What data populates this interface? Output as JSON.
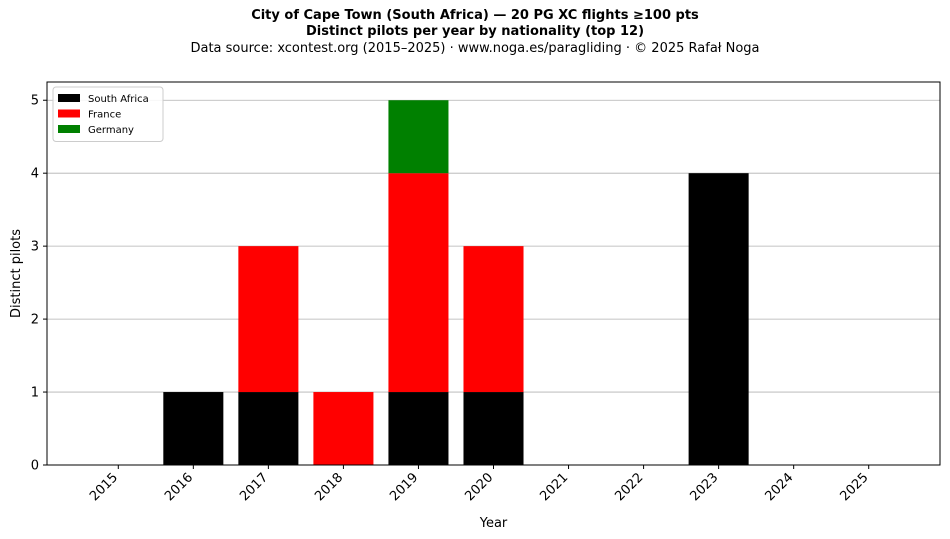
{
  "header": {
    "title_line1": "City of Cape Town (South Africa)  —  20 PG XC flights ≥100 pts",
    "title_line2": "Distinct pilots per year by nationality (top 12)",
    "subtitle": "Data source: xcontest.org (2015–2025)  ·  www.noga.es/paragliding  ·  © 2025 Rafał Noga"
  },
  "chart_data": {
    "type": "bar",
    "stacked": true,
    "categories": [
      "2015",
      "2016",
      "2017",
      "2018",
      "2019",
      "2020",
      "2021",
      "2022",
      "2023",
      "2024",
      "2025"
    ],
    "series": [
      {
        "name": "South Africa",
        "color": "#000000",
        "values": [
          0,
          1,
          1,
          0,
          1,
          1,
          0,
          0,
          4,
          0,
          0
        ]
      },
      {
        "name": "France",
        "color": "#ff0000",
        "values": [
          0,
          0,
          2,
          1,
          3,
          2,
          0,
          0,
          0,
          0,
          0
        ]
      },
      {
        "name": "Germany",
        "color": "#008000",
        "values": [
          0,
          0,
          0,
          0,
          1,
          0,
          0,
          0,
          0,
          0,
          0
        ]
      }
    ],
    "xlabel": "Year",
    "ylabel": "Distinct pilots",
    "ylim": [
      0,
      5.25
    ],
    "yticks": [
      0,
      1,
      2,
      3,
      4,
      5
    ],
    "grid": "y",
    "legend_position": "top-left"
  }
}
